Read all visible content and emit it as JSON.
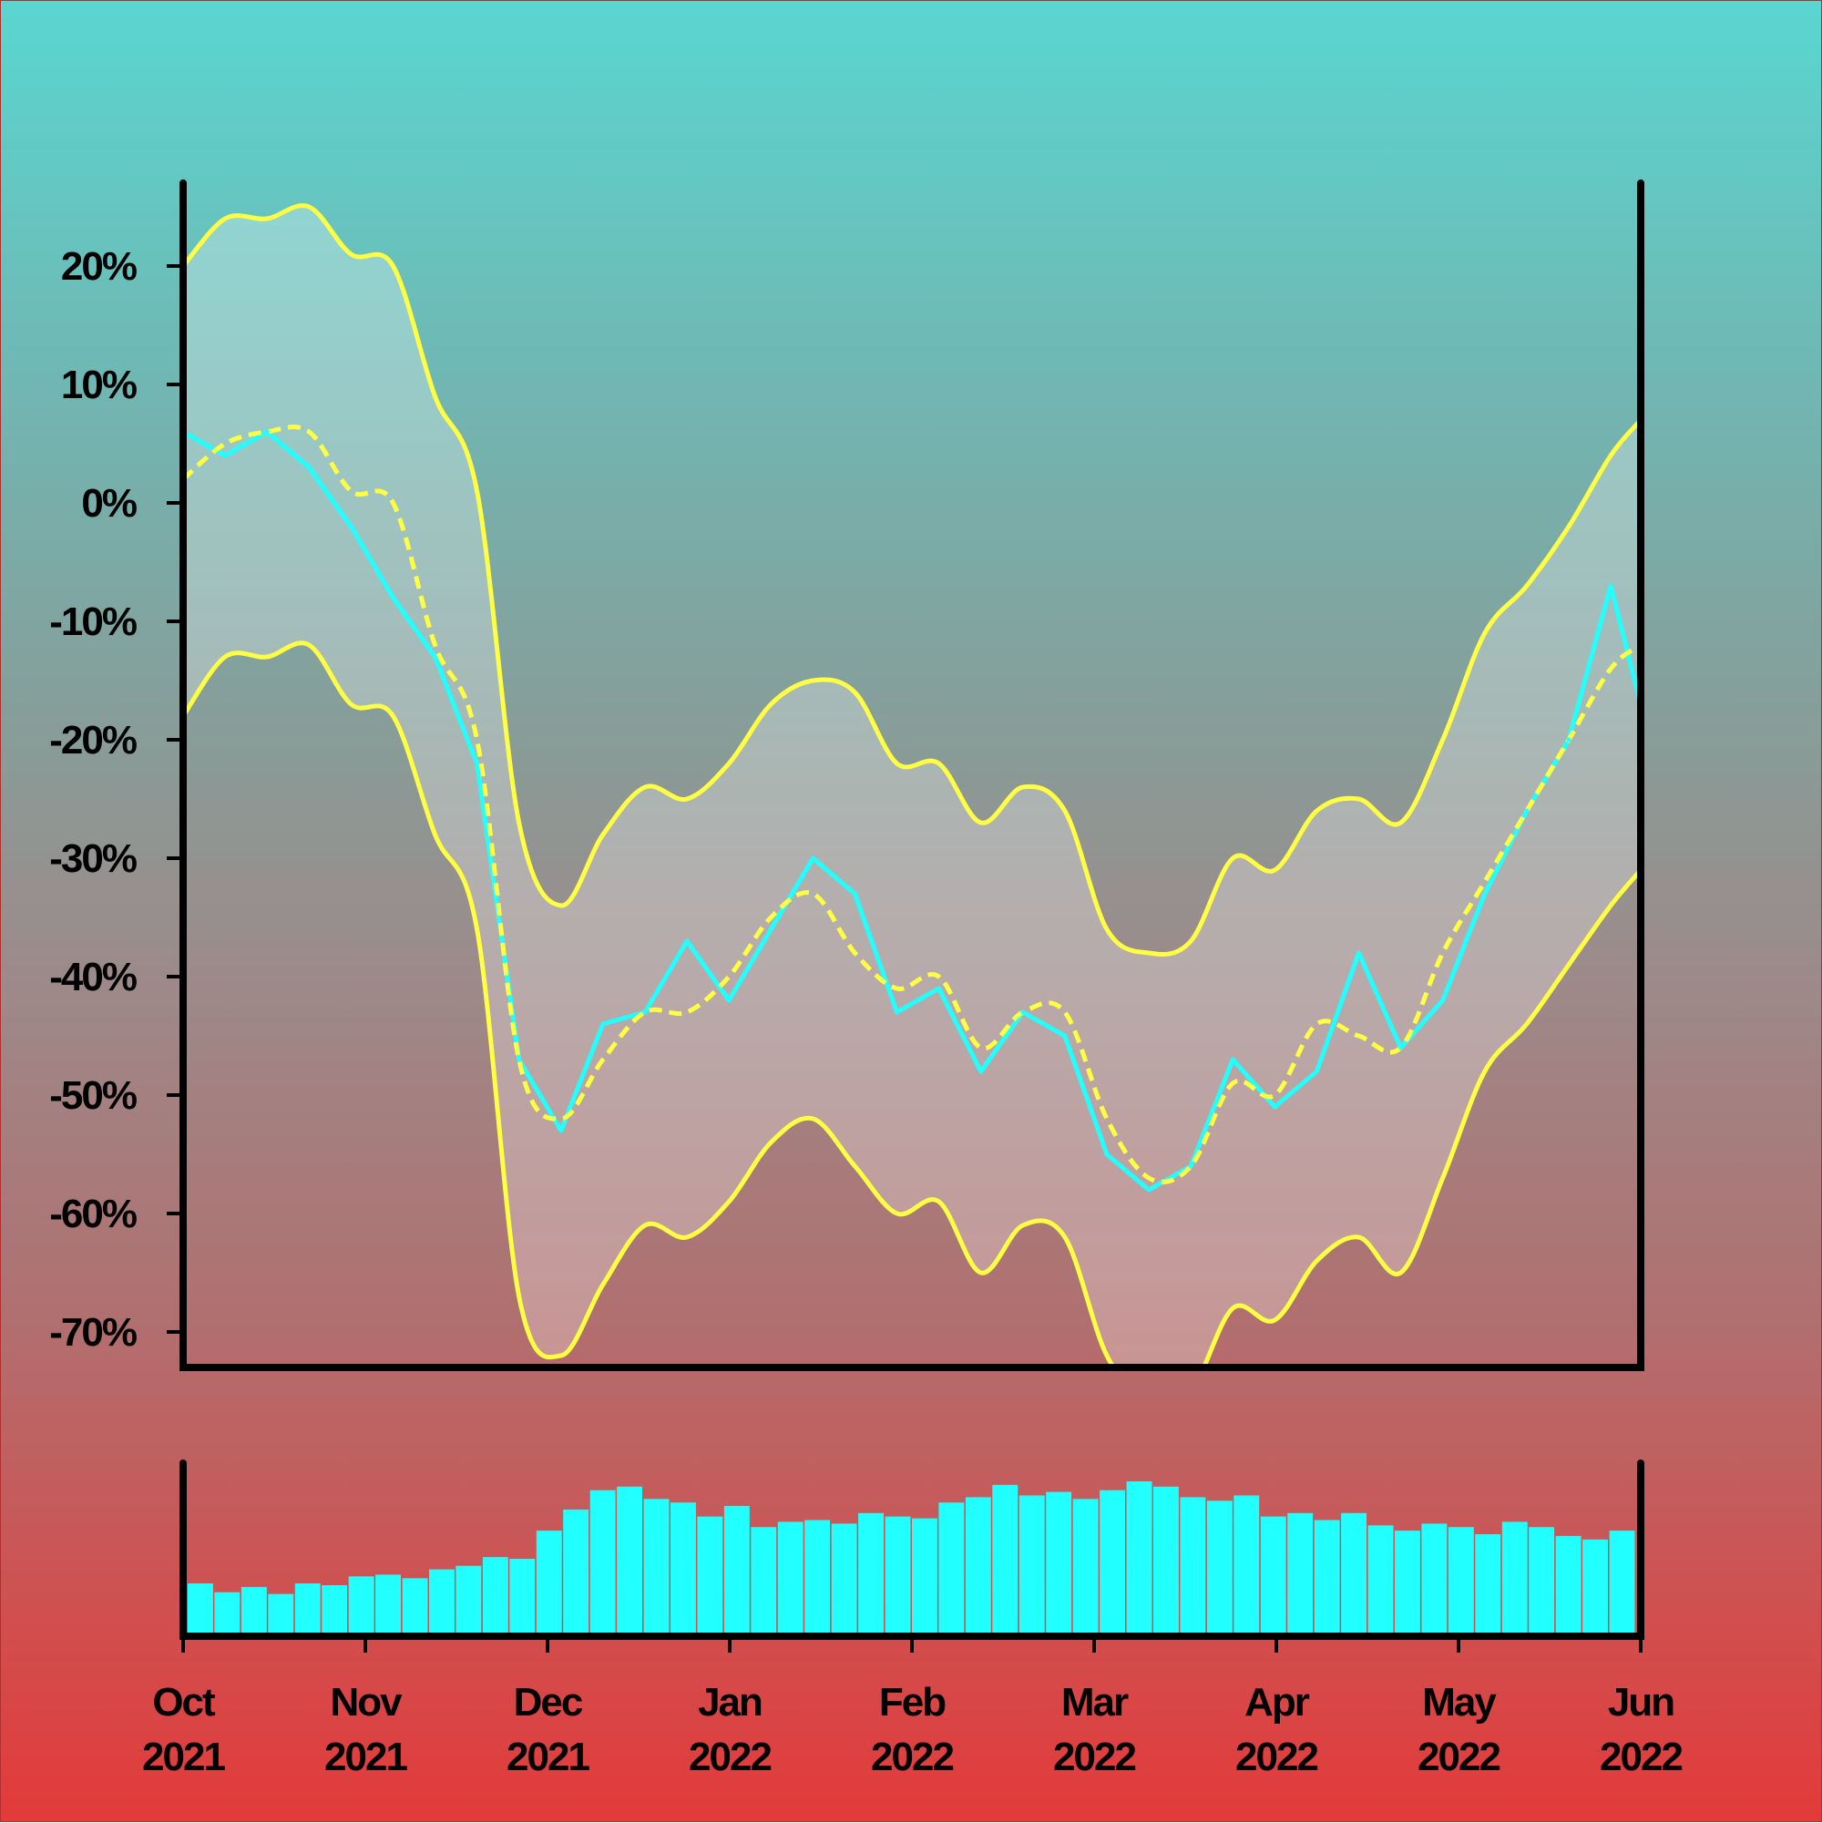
{
  "chart_data": [
    {
      "type": "line",
      "title": "",
      "xlabel": "",
      "ylabel": "",
      "y_tick_labels": [
        "20%",
        "10%",
        "0%",
        "-10%",
        "-20%",
        "-30%",
        "-40%",
        "-50%",
        "-60%",
        "-70%"
      ],
      "y_ticks": [
        20,
        10,
        0,
        -10,
        -20,
        -30,
        -40,
        -50,
        -60,
        -70
      ],
      "ylim": [
        -73,
        27
      ],
      "xlim": [
        "2021-10-01",
        "2022-06-01"
      ],
      "grid": false,
      "legend": "none",
      "colors": {
        "price": "#22ffff",
        "band": "#ffff44",
        "fill": "#ffffff"
      },
      "series": [
        {
          "role": "price",
          "x": [
            "2021-10-01",
            "2021-10-08",
            "2021-10-15",
            "2021-10-22",
            "2021-10-29",
            "2021-11-05",
            "2021-11-12",
            "2021-11-19",
            "2021-11-26",
            "2021-12-03",
            "2021-12-10",
            "2021-12-17",
            "2021-12-24",
            "2021-12-31",
            "2022-01-07",
            "2022-01-14",
            "2022-01-21",
            "2022-01-28",
            "2022-02-04",
            "2022-02-11",
            "2022-02-18",
            "2022-02-25",
            "2022-03-04",
            "2022-03-11",
            "2022-03-18",
            "2022-03-25",
            "2022-04-01",
            "2022-04-08",
            "2022-04-15",
            "2022-04-22",
            "2022-04-29",
            "2022-05-06",
            "2022-05-13",
            "2022-05-20",
            "2022-05-27",
            "2022-06-01"
          ],
          "values": [
            6,
            4,
            6,
            3,
            -2,
            -8,
            -13,
            -22,
            -47,
            -53,
            -44,
            -43,
            -37,
            -42,
            -36,
            -30,
            -33,
            -43,
            -41,
            -48,
            -43,
            -45,
            -55,
            -58,
            -56,
            -47,
            -51,
            -48,
            -38,
            -46,
            -42,
            -33,
            -26,
            -20,
            -7,
            -17
          ]
        },
        {
          "role": "middle-band",
          "x": [
            "2021-10-01",
            "2021-10-08",
            "2021-10-15",
            "2021-10-22",
            "2021-10-29",
            "2021-11-05",
            "2021-11-12",
            "2021-11-19",
            "2021-11-26",
            "2021-12-03",
            "2021-12-10",
            "2021-12-17",
            "2021-12-24",
            "2021-12-31",
            "2022-01-07",
            "2022-01-14",
            "2022-01-21",
            "2022-01-28",
            "2022-02-04",
            "2022-02-11",
            "2022-02-18",
            "2022-02-25",
            "2022-03-04",
            "2022-03-11",
            "2022-03-18",
            "2022-03-25",
            "2022-04-01",
            "2022-04-08",
            "2022-04-15",
            "2022-04-22",
            "2022-04-29",
            "2022-05-06",
            "2022-05-13",
            "2022-05-20",
            "2022-05-27",
            "2022-06-01"
          ],
          "values": [
            2,
            5,
            6,
            6,
            1,
            0,
            -12,
            -20,
            -47,
            -52,
            -47,
            -43,
            -43,
            -40,
            -35,
            -33,
            -38,
            -41,
            -40,
            -46,
            -43,
            -43,
            -52,
            -57,
            -56,
            -49,
            -50,
            -44,
            -45,
            -46,
            -38,
            -32,
            -26,
            -20,
            -14,
            -12
          ]
        },
        {
          "role": "upper-band",
          "x": [
            "2021-10-01",
            "2021-10-08",
            "2021-10-15",
            "2021-10-22",
            "2021-10-29",
            "2021-11-05",
            "2021-11-12",
            "2021-11-19",
            "2021-11-26",
            "2021-12-03",
            "2021-12-10",
            "2021-12-17",
            "2021-12-24",
            "2021-12-31",
            "2022-01-07",
            "2022-01-14",
            "2022-01-21",
            "2022-01-28",
            "2022-02-04",
            "2022-02-11",
            "2022-02-18",
            "2022-02-25",
            "2022-03-04",
            "2022-03-11",
            "2022-03-18",
            "2022-03-25",
            "2022-04-01",
            "2022-04-08",
            "2022-04-15",
            "2022-04-22",
            "2022-04-29",
            "2022-05-06",
            "2022-05-13",
            "2022-05-20",
            "2022-05-27",
            "2022-06-01"
          ],
          "values": [
            20,
            24,
            24,
            25,
            21,
            20,
            9,
            1,
            -27,
            -34,
            -28,
            -24,
            -25,
            -22,
            -17,
            -15,
            -16,
            -22,
            -22,
            -27,
            -24,
            -26,
            -36,
            -38,
            -37,
            -30,
            -31,
            -26,
            -25,
            -27,
            -20,
            -11,
            -7,
            -2,
            4,
            7
          ]
        },
        {
          "role": "lower-band",
          "x": [
            "2021-10-01",
            "2021-10-08",
            "2021-10-15",
            "2021-10-22",
            "2021-10-29",
            "2021-11-05",
            "2021-11-12",
            "2021-11-19",
            "2021-11-26",
            "2021-12-03",
            "2021-12-10",
            "2021-12-17",
            "2021-12-24",
            "2021-12-31",
            "2022-01-07",
            "2022-01-14",
            "2022-01-21",
            "2022-01-28",
            "2022-02-04",
            "2022-02-11",
            "2022-02-18",
            "2022-02-25",
            "2022-03-04",
            "2022-03-11",
            "2022-03-18",
            "2022-03-25",
            "2022-04-01",
            "2022-04-08",
            "2022-04-15",
            "2022-04-22",
            "2022-04-29",
            "2022-05-06",
            "2022-05-13",
            "2022-05-20",
            "2022-05-27",
            "2022-06-01"
          ],
          "values": [
            -18,
            -13,
            -13,
            -12,
            -17,
            -18,
            -28,
            -36,
            -67,
            -72,
            -66,
            -61,
            -62,
            -59,
            -54,
            -52,
            -56,
            -60,
            -59,
            -65,
            -61,
            -62,
            -72,
            -76,
            -75,
            -68,
            -69,
            -64,
            -62,
            -65,
            -57,
            -48,
            -44,
            -39,
            -34,
            -31
          ]
        }
      ]
    },
    {
      "type": "bar",
      "title": "",
      "role": "volume",
      "x_tick_labels": [
        {
          "month": "Oct",
          "year": "2021"
        },
        {
          "month": "Nov",
          "year": "2021"
        },
        {
          "month": "Dec",
          "year": "2021"
        },
        {
          "month": "Jan",
          "year": "2022"
        },
        {
          "month": "Feb",
          "year": "2022"
        },
        {
          "month": "Mar",
          "year": "2022"
        },
        {
          "month": "Apr",
          "year": "2022"
        },
        {
          "month": "May",
          "year": "2022"
        },
        {
          "month": "Jun",
          "year": "2022"
        }
      ],
      "values": [
        30,
        25,
        28,
        24,
        30,
        29,
        34,
        35,
        33,
        38,
        40,
        45,
        44,
        60,
        72,
        83,
        85,
        78,
        76,
        68,
        74,
        62,
        65,
        66,
        64,
        70,
        68,
        67,
        76,
        79,
        86,
        80,
        82,
        78,
        83,
        88,
        85,
        79,
        77,
        80,
        68,
        70,
        66,
        70,
        63,
        60,
        64,
        62,
        58,
        65,
        62,
        57,
        55,
        60
      ]
    }
  ]
}
